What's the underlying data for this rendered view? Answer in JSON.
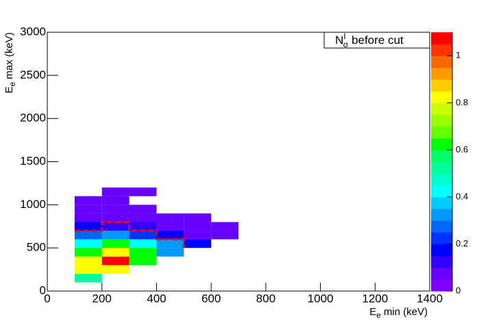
{
  "chart_data": {
    "type": "heatmap",
    "legend_text": {
      "main": "N",
      "sub": "σ",
      "sup": "I",
      "rest": "before cut"
    },
    "xlabel": {
      "main": "E",
      "sub": "e",
      "rest": "min (keV)"
    },
    "ylabel": {
      "main": "E",
      "sub": "e",
      "rest": "max (keV)"
    },
    "xlim": [
      0,
      1400
    ],
    "xticks": [
      0,
      200,
      400,
      600,
      800,
      1000,
      1200,
      1400
    ],
    "ylim": [
      0,
      3000
    ],
    "yticks": [
      0,
      500,
      1000,
      1500,
      2000,
      2500,
      3000
    ],
    "zlim": [
      0,
      1.1
    ],
    "zticks": [
      0,
      0.2,
      0.4,
      0.6,
      0.8,
      1
    ],
    "xbin": 100,
    "ybin": 100,
    "palette": [
      "#7f00ff",
      "#6600ff",
      "#3300ff",
      "#0000ff",
      "#0033ff",
      "#0066ff",
      "#0099ff",
      "#00ccff",
      "#00ffff",
      "#00ffcc",
      "#00ff99",
      "#00ff66",
      "#00ff00",
      "#66ff00",
      "#99ff00",
      "#ccff00",
      "#ffff00",
      "#ffcc00",
      "#ff9900",
      "#ff6600",
      "#ff3300",
      "#ff0000"
    ],
    "x": [
      100,
      100,
      200,
      100,
      200,
      300,
      100,
      200,
      300,
      400,
      100,
      200,
      300,
      400,
      500,
      100,
      200,
      300,
      400,
      500,
      600,
      100,
      200,
      300,
      400,
      500,
      600,
      100,
      200,
      300,
      400,
      500,
      100,
      200,
      300,
      100,
      200,
      200,
      300
    ],
    "y": [
      100,
      200,
      200,
      300,
      300,
      300,
      400,
      400,
      400,
      400,
      500,
      500,
      500,
      500,
      500,
      600,
      600,
      600,
      600,
      600,
      600,
      700,
      700,
      700,
      700,
      700,
      700,
      800,
      800,
      800,
      800,
      800,
      900,
      900,
      900,
      1000,
      1000,
      1100,
      1100
    ],
    "values": [
      0.52,
      0.8,
      0.8,
      0.8,
      1.05,
      0.6,
      0.6,
      0.85,
      0.6,
      0.35,
      0.4,
      0.6,
      0.4,
      0.3,
      0.15,
      0.25,
      0.35,
      0.2,
      0.15,
      0.05,
      0.05,
      0.15,
      0.12,
      0.12,
      0.05,
      0.05,
      0.05,
      0.05,
      0.05,
      0.05,
      0.05,
      0.05,
      0.05,
      0.05,
      0.05,
      0.05,
      0.05,
      0.05,
      0.05
    ],
    "contour": {
      "color": "#ff0000",
      "x": [
        100,
        200,
        200,
        300,
        300,
        400,
        400,
        500,
        500
      ],
      "y": [
        700,
        700,
        800,
        800,
        700,
        700,
        600,
        600,
        500
      ]
    }
  }
}
